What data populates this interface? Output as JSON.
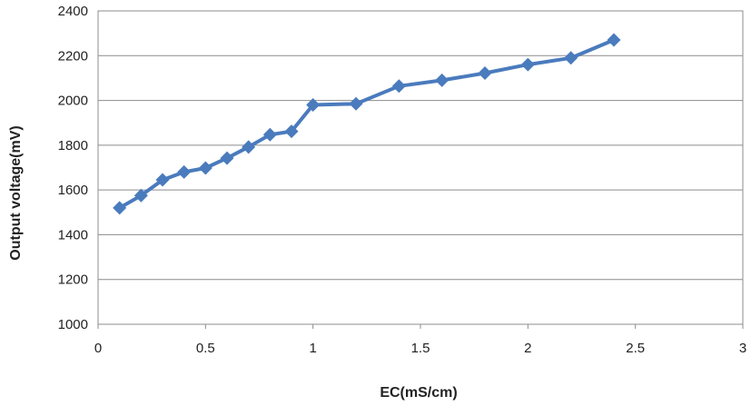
{
  "chart_data": {
    "type": "line",
    "title": "",
    "xlabel": "EC(mS/cm)",
    "ylabel": "Output voltage(mV)",
    "xlim": [
      0,
      3
    ],
    "ylim": [
      1000,
      2400
    ],
    "x_ticks": [
      0,
      0.5,
      1,
      1.5,
      2,
      2.5,
      3
    ],
    "x_tick_labels": [
      "0",
      "0.5",
      "1",
      "1.5",
      "2",
      "2.5",
      "3"
    ],
    "y_ticks": [
      1000,
      1200,
      1400,
      1600,
      1800,
      2000,
      2200,
      2400
    ],
    "y_tick_labels": [
      "1000",
      "1200",
      "1400",
      "1600",
      "1800",
      "2000",
      "2200",
      "2400"
    ],
    "grid": "horizontal",
    "legend": "none",
    "series": [
      {
        "color": "#4a7bbd",
        "marker": "diamond",
        "x": [
          0.1,
          0.2,
          0.3,
          0.4,
          0.5,
          0.6,
          0.7,
          0.8,
          0.9,
          1.0,
          1.2,
          1.4,
          1.6,
          1.8,
          2.0,
          2.2,
          2.4
        ],
        "y": [
          1520,
          1575,
          1645,
          1680,
          1698,
          1742,
          1792,
          1847,
          1862,
          1980,
          1985,
          2064,
          2090,
          2122,
          2160,
          2190,
          2270
        ]
      }
    ]
  }
}
